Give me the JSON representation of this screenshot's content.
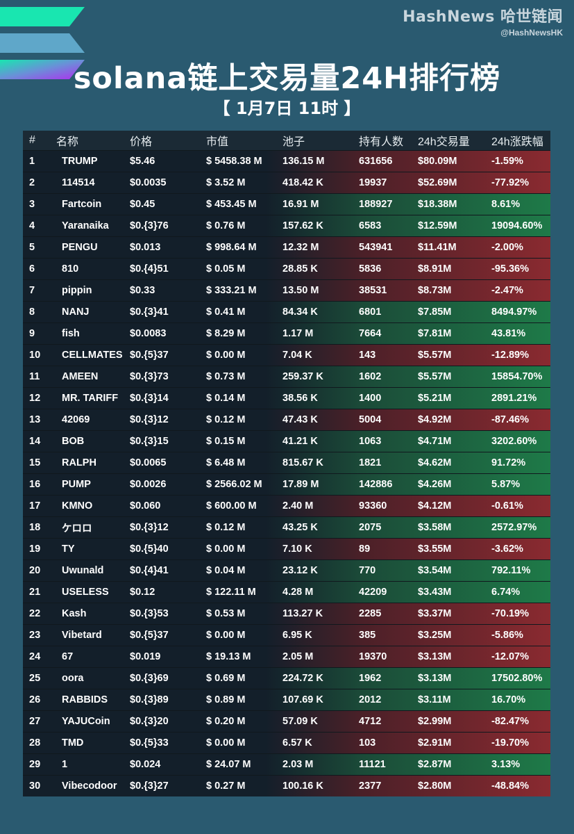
{
  "brand": {
    "name": "HashNews 哈世链闻",
    "handle": "@HashNewsHK"
  },
  "title": "solana链上交易量24H排行榜",
  "date": "【 1月7日 11时 】",
  "colors": {
    "background": "#2a5a70",
    "up": "#1e7a48",
    "down": "#8a2a30"
  },
  "table": {
    "headers": [
      "#",
      "名称",
      "价格",
      "市值",
      "池子",
      "持有人数",
      "24h交易量",
      "24h涨跌幅"
    ],
    "rows": [
      {
        "rank": "1",
        "name": "TRUMP",
        "price": "$5.46",
        "mcap": "$ 5458.38 M",
        "pool": "136.15 M",
        "holders": "631656",
        "volume": "$80.09M",
        "change": "-1.59%",
        "dir": "down"
      },
      {
        "rank": "2",
        "name": "114514",
        "price": "$0.0035",
        "mcap": "$ 3.52 M",
        "pool": "418.42 K",
        "holders": "19937",
        "volume": "$52.69M",
        "change": "-77.92%",
        "dir": "down"
      },
      {
        "rank": "3",
        "name": "Fartcoin",
        "price": "$0.45",
        "mcap": "$ 453.45 M",
        "pool": "16.91 M",
        "holders": "188927",
        "volume": "$18.38M",
        "change": "8.61%",
        "dir": "up"
      },
      {
        "rank": "4",
        "name": "Yaranaika",
        "price": "$0.{3}76",
        "mcap": "$ 0.76 M",
        "pool": "157.62 K",
        "holders": "6583",
        "volume": "$12.59M",
        "change": "19094.60%",
        "dir": "up"
      },
      {
        "rank": "5",
        "name": "PENGU",
        "price": "$0.013",
        "mcap": "$ 998.64 M",
        "pool": "12.32 M",
        "holders": "543941",
        "volume": "$11.41M",
        "change": "-2.00%",
        "dir": "down"
      },
      {
        "rank": "6",
        "name": "810",
        "price": "$0.{4}51",
        "mcap": "$ 0.05 M",
        "pool": "28.85 K",
        "holders": "5836",
        "volume": "$8.91M",
        "change": "-95.36%",
        "dir": "down"
      },
      {
        "rank": "7",
        "name": "pippin",
        "price": "$0.33",
        "mcap": "$ 333.21 M",
        "pool": "13.50 M",
        "holders": "38531",
        "volume": "$8.73M",
        "change": "-2.47%",
        "dir": "down"
      },
      {
        "rank": "8",
        "name": "NANJ",
        "price": "$0.{3}41",
        "mcap": "$ 0.41 M",
        "pool": "84.34 K",
        "holders": "6801",
        "volume": "$7.85M",
        "change": "8494.97%",
        "dir": "up"
      },
      {
        "rank": "9",
        "name": "fish",
        "price": "$0.0083",
        "mcap": "$ 8.29 M",
        "pool": "1.17 M",
        "holders": "7664",
        "volume": "$7.81M",
        "change": "43.81%",
        "dir": "up"
      },
      {
        "rank": "10",
        "name": "CELLMATES",
        "price": "$0.{5}37",
        "mcap": "$ 0.00 M",
        "pool": "7.04 K",
        "holders": "143",
        "volume": "$5.57M",
        "change": "-12.89%",
        "dir": "down"
      },
      {
        "rank": "11",
        "name": "AMEEN",
        "price": "$0.{3}73",
        "mcap": "$ 0.73 M",
        "pool": "259.37 K",
        "holders": "1602",
        "volume": "$5.57M",
        "change": "15854.70%",
        "dir": "up"
      },
      {
        "rank": "12",
        "name": "MR. TARIFF",
        "price": "$0.{3}14",
        "mcap": "$ 0.14 M",
        "pool": "38.56 K",
        "holders": "1400",
        "volume": "$5.21M",
        "change": "2891.21%",
        "dir": "up"
      },
      {
        "rank": "13",
        "name": "42069",
        "price": "$0.{3}12",
        "mcap": "$ 0.12 M",
        "pool": "47.43 K",
        "holders": "5004",
        "volume": "$4.92M",
        "change": "-87.46%",
        "dir": "down"
      },
      {
        "rank": "14",
        "name": "BOB",
        "price": "$0.{3}15",
        "mcap": "$ 0.15 M",
        "pool": "41.21 K",
        "holders": "1063",
        "volume": "$4.71M",
        "change": "3202.60%",
        "dir": "up"
      },
      {
        "rank": "15",
        "name": "RALPH",
        "price": "$0.0065",
        "mcap": "$ 6.48 M",
        "pool": "815.67 K",
        "holders": "1821",
        "volume": "$4.62M",
        "change": "91.72%",
        "dir": "up"
      },
      {
        "rank": "16",
        "name": "PUMP",
        "price": "$0.0026",
        "mcap": "$ 2566.02 M",
        "pool": "17.89 M",
        "holders": "142886",
        "volume": "$4.26M",
        "change": "5.87%",
        "dir": "up"
      },
      {
        "rank": "17",
        "name": "KMNO",
        "price": "$0.060",
        "mcap": "$ 600.00 M",
        "pool": "2.40 M",
        "holders": "93360",
        "volume": "$4.12M",
        "change": "-0.61%",
        "dir": "down"
      },
      {
        "rank": "18",
        "name": "ケロロ",
        "price": "$0.{3}12",
        "mcap": "$ 0.12 M",
        "pool": "43.25 K",
        "holders": "2075",
        "volume": "$3.58M",
        "change": "2572.97%",
        "dir": "up"
      },
      {
        "rank": "19",
        "name": "TY",
        "price": "$0.{5}40",
        "mcap": "$ 0.00 M",
        "pool": "7.10 K",
        "holders": "89",
        "volume": "$3.55M",
        "change": "-3.62%",
        "dir": "down"
      },
      {
        "rank": "20",
        "name": "Uwunald",
        "price": "$0.{4}41",
        "mcap": "$ 0.04 M",
        "pool": "23.12 K",
        "holders": "770",
        "volume": "$3.54M",
        "change": "792.11%",
        "dir": "up"
      },
      {
        "rank": "21",
        "name": "USELESS",
        "price": "$0.12",
        "mcap": "$ 122.11 M",
        "pool": "4.28 M",
        "holders": "42209",
        "volume": "$3.43M",
        "change": "6.74%",
        "dir": "up"
      },
      {
        "rank": "22",
        "name": "Kash",
        "price": "$0.{3}53",
        "mcap": "$ 0.53 M",
        "pool": "113.27 K",
        "holders": "2285",
        "volume": "$3.37M",
        "change": "-70.19%",
        "dir": "down"
      },
      {
        "rank": "23",
        "name": "Vibetard",
        "price": "$0.{5}37",
        "mcap": "$ 0.00 M",
        "pool": "6.95 K",
        "holders": "385",
        "volume": "$3.25M",
        "change": "-5.86%",
        "dir": "down"
      },
      {
        "rank": "24",
        "name": "67",
        "price": "$0.019",
        "mcap": "$ 19.13 M",
        "pool": "2.05 M",
        "holders": "19370",
        "volume": "$3.13M",
        "change": "-12.07%",
        "dir": "down"
      },
      {
        "rank": "25",
        "name": "oora",
        "price": "$0.{3}69",
        "mcap": "$ 0.69 M",
        "pool": "224.72 K",
        "holders": "1962",
        "volume": "$3.13M",
        "change": "17502.80%",
        "dir": "up"
      },
      {
        "rank": "26",
        "name": "RABBIDS",
        "price": "$0.{3}89",
        "mcap": "$ 0.89 M",
        "pool": "107.69 K",
        "holders": "2012",
        "volume": "$3.11M",
        "change": "16.70%",
        "dir": "up"
      },
      {
        "rank": "27",
        "name": "YAJUCoin",
        "price": "$0.{3}20",
        "mcap": "$ 0.20 M",
        "pool": "57.09 K",
        "holders": "4712",
        "volume": "$2.99M",
        "change": "-82.47%",
        "dir": "down"
      },
      {
        "rank": "28",
        "name": "TMD",
        "price": "$0.{5}33",
        "mcap": "$ 0.00 M",
        "pool": "6.57 K",
        "holders": "103",
        "volume": "$2.91M",
        "change": "-19.70%",
        "dir": "down"
      },
      {
        "rank": "29",
        "name": "1",
        "price": "$0.024",
        "mcap": "$ 24.07 M",
        "pool": "2.03 M",
        "holders": "11121",
        "volume": "$2.87M",
        "change": "3.13%",
        "dir": "up"
      },
      {
        "rank": "30",
        "name": "Vibecodoor",
        "price": "$0.{3}27",
        "mcap": "$ 0.27 M",
        "pool": "100.16 K",
        "holders": "2377",
        "volume": "$2.80M",
        "change": "-48.84%",
        "dir": "down"
      }
    ]
  }
}
